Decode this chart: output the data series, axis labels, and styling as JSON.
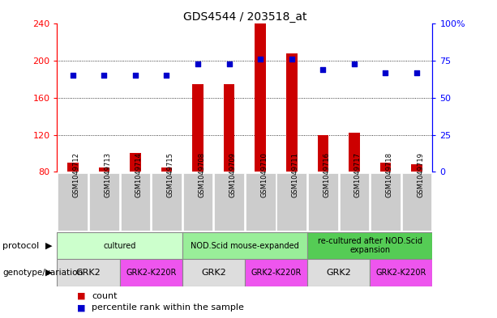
{
  "title": "GDS4544 / 203518_at",
  "samples": [
    "GSM1049712",
    "GSM1049713",
    "GSM1049714",
    "GSM1049715",
    "GSM1049708",
    "GSM1049709",
    "GSM1049710",
    "GSM1049711",
    "GSM1049716",
    "GSM1049717",
    "GSM1049718",
    "GSM1049719"
  ],
  "counts": [
    90,
    85,
    100,
    85,
    175,
    175,
    240,
    208,
    120,
    122,
    90,
    88
  ],
  "percentile_ranks": [
    65,
    65,
    65,
    65,
    73,
    73,
    76,
    76,
    69,
    73,
    67,
    67
  ],
  "ylim_left": [
    80,
    240
  ],
  "ylim_right": [
    0,
    100
  ],
  "yticks_left": [
    80,
    120,
    160,
    200,
    240
  ],
  "yticks_right": [
    0,
    25,
    50,
    75,
    100
  ],
  "bar_color": "#cc0000",
  "dot_color": "#0000cc",
  "protocol_groups": [
    {
      "label": "cultured",
      "start": 0,
      "end": 4,
      "color": "#ccffcc"
    },
    {
      "label": "NOD.Scid mouse-expanded",
      "start": 4,
      "end": 8,
      "color": "#99ee99"
    },
    {
      "label": "re-cultured after NOD.Scid\nexpansion",
      "start": 8,
      "end": 12,
      "color": "#55cc55"
    }
  ],
  "genotype_groups": [
    {
      "label": "GRK2",
      "start": 0,
      "end": 2,
      "color": "#dddddd"
    },
    {
      "label": "GRK2-K220R",
      "start": 2,
      "end": 4,
      "color": "#ee55ee"
    },
    {
      "label": "GRK2",
      "start": 4,
      "end": 6,
      "color": "#dddddd"
    },
    {
      "label": "GRK2-K220R",
      "start": 6,
      "end": 8,
      "color": "#ee55ee"
    },
    {
      "label": "GRK2",
      "start": 8,
      "end": 10,
      "color": "#dddddd"
    },
    {
      "label": "GRK2-K220R",
      "start": 10,
      "end": 12,
      "color": "#ee55ee"
    }
  ],
  "legend_count_label": "count",
  "legend_pct_label": "percentile rank within the sample",
  "grid_color": "#000000",
  "background_color": "#ffffff",
  "plot_bg_color": "#ffffff",
  "sample_bg_color": "#cccccc"
}
